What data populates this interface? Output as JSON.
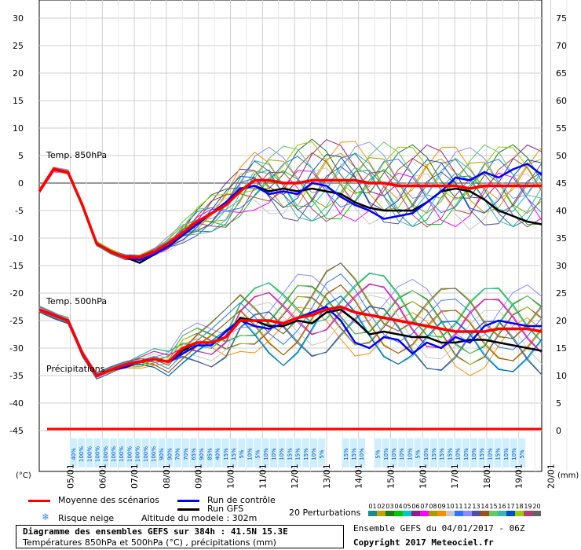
{
  "chart_data": {
    "type": "line",
    "title": "Diagramme des ensembles GEFS sur 384h : 41.5N 15.3E",
    "subtitle": "Températures 850hPa et 500hPa (°C) , précipitations (mm)",
    "y_left_unit": "(°C)",
    "y_right_unit": "(mm)",
    "y_left_ticks": [
      30,
      25,
      20,
      15,
      10,
      5,
      0,
      -5,
      -10,
      -15,
      -20,
      -25,
      -30,
      -35,
      -40,
      -45
    ],
    "y_right_ticks": [
      75,
      70,
      65,
      60,
      55,
      50,
      45,
      40,
      35,
      30,
      25,
      20,
      15,
      10,
      5,
      0
    ],
    "ylim": [
      -45,
      30
    ],
    "x_ticks": [
      "05/01",
      "06/01",
      "07/01",
      "08/01",
      "09/01",
      "10/01",
      "11/01",
      "12/01",
      "13/01",
      "14/01",
      "15/01",
      "16/01",
      "17/01",
      "18/01",
      "19/01",
      "20/01"
    ],
    "section_labels": [
      "Temp. 850hPa",
      "Temp. 500hPa",
      "Précipitations"
    ],
    "legend": {
      "mean": "Moyenne des scénarios",
      "control": "Run de contrôle",
      "gfs": "Run GFS",
      "perturbations": "20 Perturbations",
      "snow": "Risque neige",
      "altitude": "Altitude du modele : 302m"
    },
    "ensemble_info": "Ensemble GEFS du 04/01/2017 - 06Z",
    "copyright": "Copyright 2017 Meteociel.fr",
    "snow_risk": [
      "40%",
      "100%",
      "100%",
      "100%",
      "100%",
      "100%",
      "100%",
      "100%",
      "100%",
      "100%",
      "100%",
      "90%",
      "90%",
      "70%",
      "70%",
      "65%",
      "90%",
      "85%",
      "40%",
      "15%",
      "15%",
      "5%",
      "10%",
      "5%",
      "10%",
      "10%",
      "10%",
      "15%",
      "15%",
      "15%",
      "10%",
      "5%",
      "",
      "",
      "15%",
      "15%",
      "10%",
      "",
      "5%",
      "10%",
      "10%",
      "10%",
      "10%",
      "5%",
      "10%",
      "15%",
      "15%",
      "15%",
      "10%",
      "10%",
      "10%",
      "15%",
      "10%",
      "15%",
      "10%",
      "10%",
      "5%"
    ],
    "perturbation_colors": [
      "#1a8c8c",
      "#c8a000",
      "#1e7a1e",
      "#00c800",
      "#00c8c8",
      "#8c1e8c",
      "#ff00ff",
      "#a0a000",
      "#ff8c00",
      "#c8c8c8",
      "#2878ff",
      "#8c8cff",
      "#5050a0",
      "#a05014",
      "#64c864",
      "#3cb4b4",
      "#0050c8",
      "#9bcd00",
      "#b43c78",
      "#646464"
    ],
    "perturbation_labels": [
      "01",
      "02",
      "03",
      "04",
      "05",
      "06",
      "07",
      "08",
      "09",
      "10",
      "11",
      "12",
      "13",
      "14",
      "15",
      "16",
      "17",
      "18",
      "19",
      "20"
    ],
    "series": [
      {
        "name": "Moyenne des scénarios",
        "color": "#ff0000",
        "t850": [
          -1.5,
          2.5,
          2,
          -4,
          -11,
          -12.5,
          -13.5,
          -13.5,
          -12.5,
          -11,
          -9,
          -7,
          -5.5,
          -4,
          -1.5,
          0.5,
          0.5,
          0,
          0,
          0.5,
          0.5,
          0.5,
          0.5,
          0,
          0,
          -0.5,
          -0.5,
          -0.5,
          -0.5,
          -0.5,
          -1,
          -0.5,
          -0.5,
          -0.5,
          -0.5,
          -0.5
        ],
        "t500": [
          -23,
          -24,
          -25,
          -31,
          -35,
          -34,
          -33,
          -32.5,
          -32,
          -32.5,
          -30,
          -29,
          -29,
          -28,
          -25,
          -25,
          -25,
          -25.5,
          -24.5,
          -24,
          -23,
          -22.5,
          -23.5,
          -24,
          -24.5,
          -25,
          -25.5,
          -26,
          -26.5,
          -27,
          -27,
          -27,
          -26.5,
          -26.5,
          -26.5,
          -27
        ]
      },
      {
        "name": "Run de contrôle",
        "color": "#0000ff",
        "t850": [
          -1.5,
          2.5,
          2,
          -4,
          -11,
          -12.5,
          -13.5,
          -14,
          -13,
          -11.5,
          -9.5,
          -7.5,
          -5.5,
          -3.5,
          -1,
          -0.5,
          -2,
          -1.5,
          -2,
          0,
          -0.5,
          -2.5,
          -4,
          -5,
          -6.5,
          -6,
          -5.5,
          -3.5,
          -1.5,
          1,
          0.5,
          2,
          1,
          2.5,
          3.5,
          1.5
        ],
        "t500": [
          -23,
          -24,
          -25,
          -31,
          -35,
          -34,
          -33.5,
          -32.5,
          -32,
          -32.5,
          -31,
          -29.5,
          -29.5,
          -27,
          -25,
          -26,
          -26.5,
          -25.5,
          -24.5,
          -23.5,
          -22.5,
          -25,
          -29,
          -30,
          -28,
          -28.5,
          -31,
          -29,
          -30,
          -28,
          -29,
          -26,
          -25,
          -25.5,
          -26,
          -26
        ]
      },
      {
        "name": "Run GFS",
        "color": "#000000",
        "t850": [
          -1.5,
          2.5,
          2,
          -4,
          -11,
          -12.5,
          -13.5,
          -14.5,
          -13,
          -11,
          -9.5,
          -7,
          -5.5,
          -3.5,
          -1,
          -0.5,
          -1.5,
          -1,
          -1.5,
          -1,
          -1.5,
          -2,
          -3.5,
          -4.5,
          -5,
          -5,
          -5,
          -3.5,
          -1.5,
          -1,
          -1.5,
          -3,
          -5,
          -6,
          -7,
          -7.5
        ],
        "t500": [
          -23,
          -24,
          -25,
          -31,
          -35,
          -34,
          -33,
          -32.5,
          -32,
          -32.5,
          -30.5,
          -29,
          -29,
          -28,
          -24.5,
          -25,
          -26,
          -26,
          -25,
          -25.5,
          -23.5,
          -23,
          -25,
          -27.5,
          -27,
          -27.5,
          -28,
          -28,
          -29,
          -29,
          -28.5,
          -28.5,
          -29,
          -29.5,
          -30,
          -30.5
        ]
      }
    ]
  }
}
